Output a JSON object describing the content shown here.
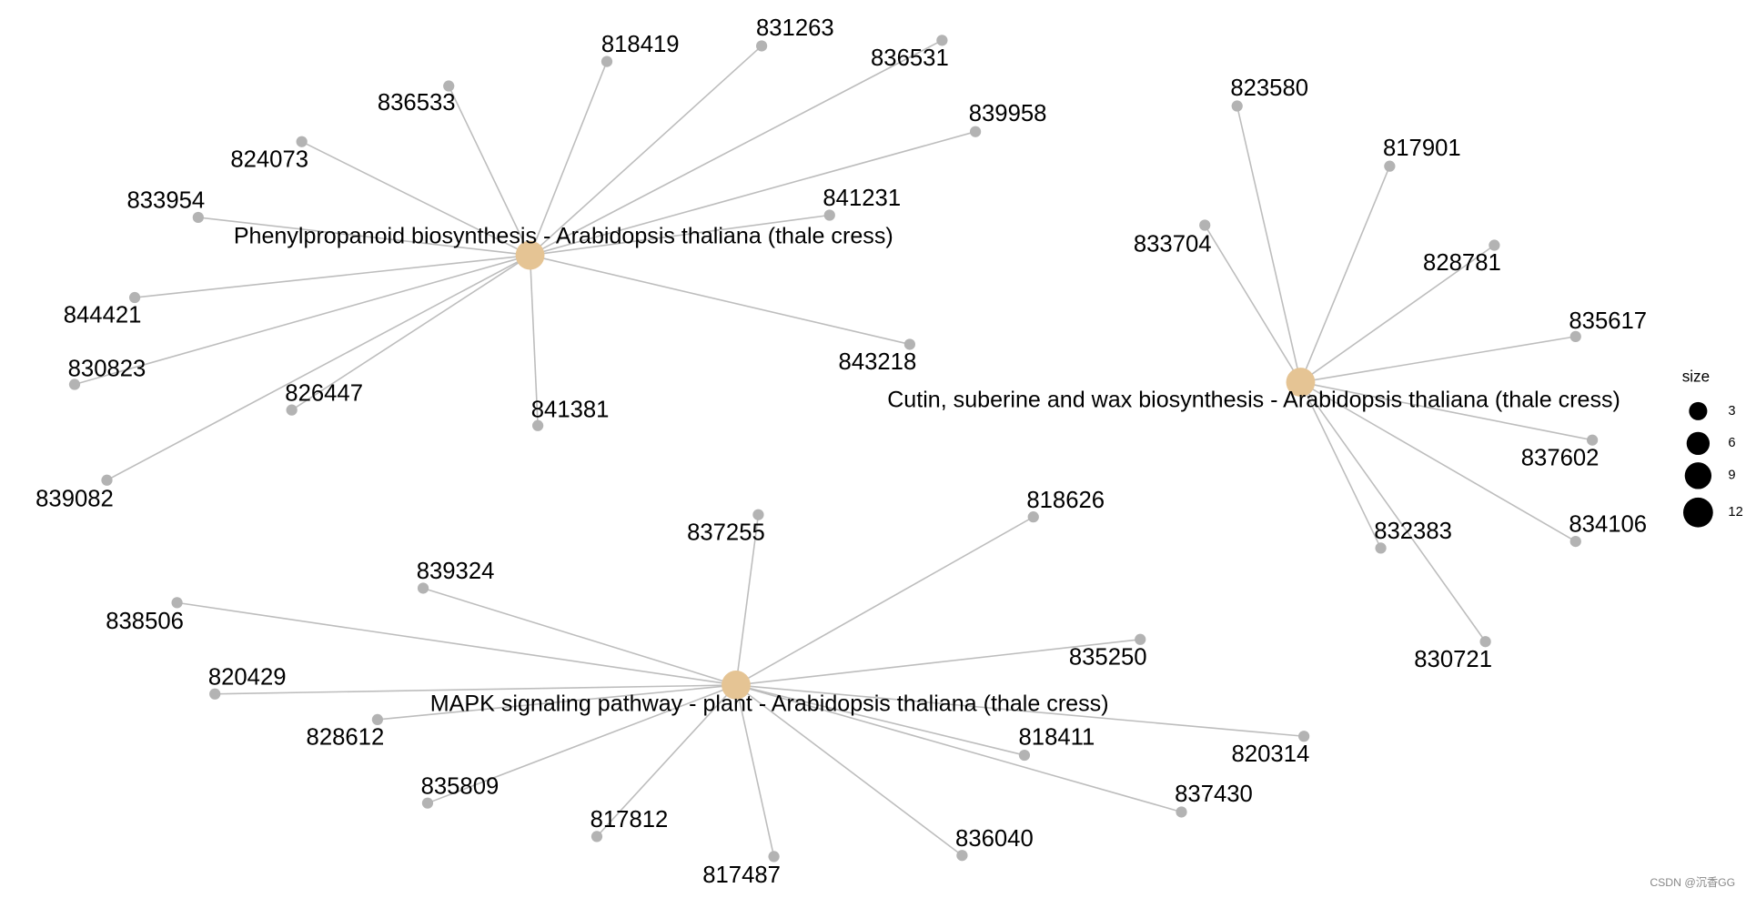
{
  "groups": [
    {
      "label": "Phenylpropanoid biosynthesis - Arabidopsis thaliana (thale cress)",
      "genes": [
        "818419",
        "831263",
        "836531",
        "836533",
        "839958",
        "824073",
        "833954",
        "841231",
        "844421",
        "843218",
        "830823",
        "826447",
        "841381",
        "839082"
      ]
    },
    {
      "label": "Cutin, suberine and wax biosynthesis - Arabidopsis thaliana (thale cress)",
      "genes": [
        "823580",
        "817901",
        "833704",
        "828781",
        "835617",
        "837602",
        "834106",
        "832383",
        "830721"
      ]
    },
    {
      "label": "MAPK signaling pathway - plant - Arabidopsis thaliana (thale cress)",
      "genes": [
        "837255",
        "818626",
        "839324",
        "838506",
        "835250",
        "820429",
        "828612",
        "818411",
        "820314",
        "835809",
        "837430",
        "817812",
        "836040",
        "817487"
      ]
    }
  ],
  "legend": {
    "title": "size",
    "items": [
      3,
      6,
      9,
      12
    ]
  },
  "watermark": "CSDN @沉香GG"
}
